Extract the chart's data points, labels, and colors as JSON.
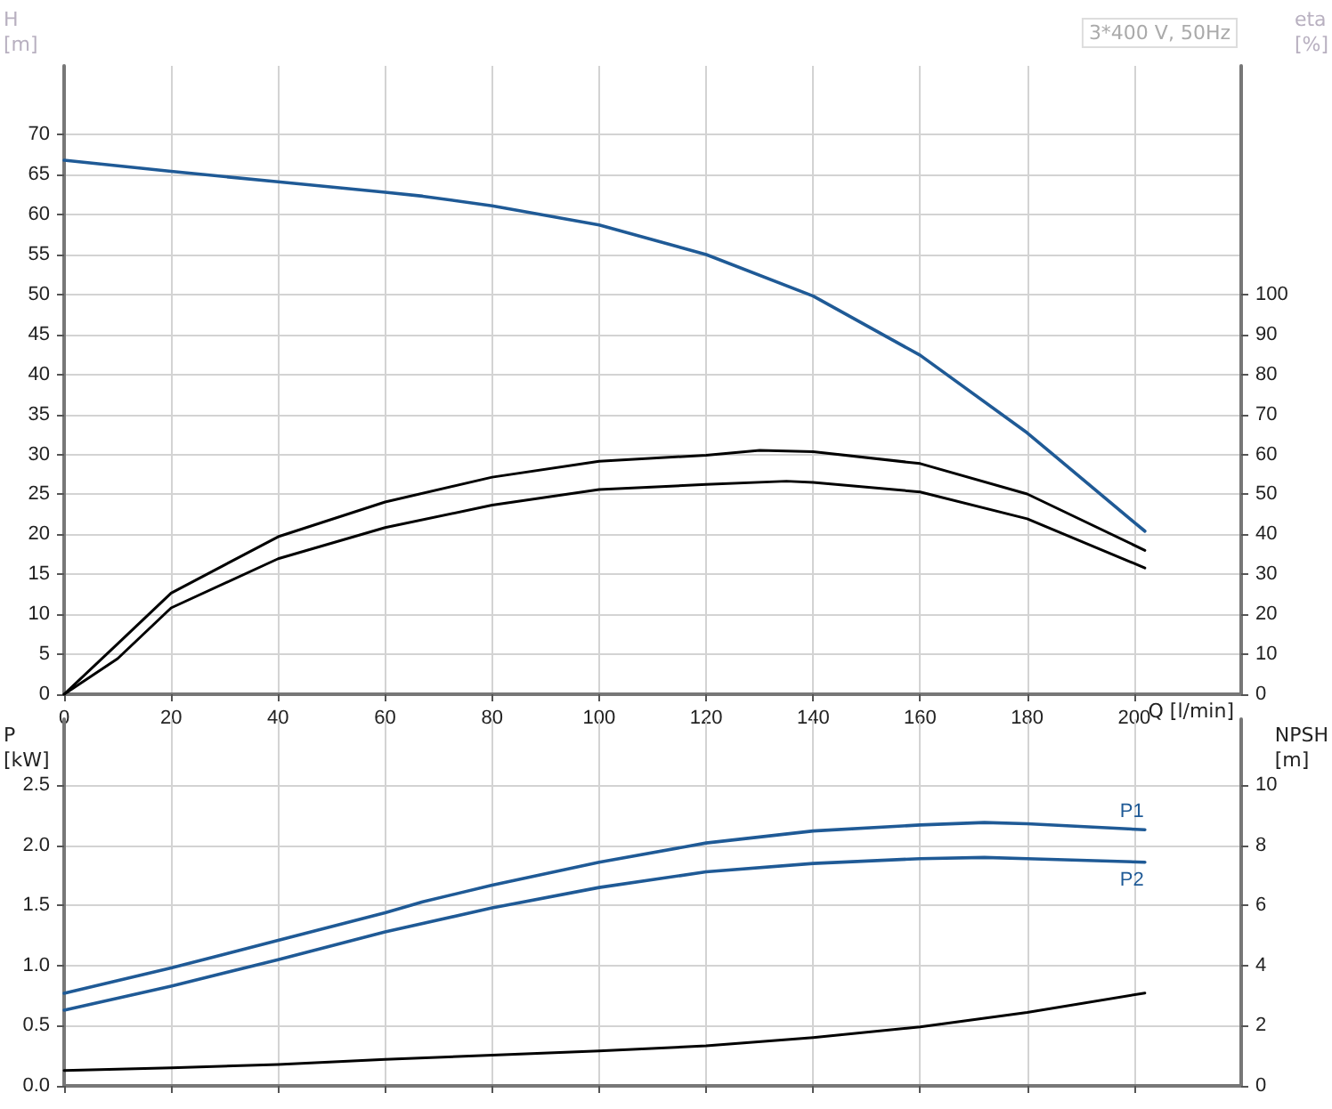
{
  "chart_data": [
    {
      "type": "line",
      "xlabel": "Q [l/min]",
      "ylabel": "H [m]",
      "y2label": "eta [%]",
      "annotations": [
        "3*400 V, 50Hz"
      ],
      "xlim": [
        0,
        220
      ],
      "xticks": [
        0,
        20,
        40,
        60,
        80,
        100,
        120,
        140,
        160,
        180,
        200
      ],
      "ylim": [
        0,
        78.6
      ],
      "yticks": [
        0,
        5,
        10,
        15,
        20,
        25,
        30,
        35,
        40,
        45,
        50,
        55,
        60,
        65,
        70
      ],
      "y2lim": [
        0,
        157.2
      ],
      "y2ticks": [
        0,
        10,
        20,
        30,
        40,
        50,
        60,
        70,
        80,
        90,
        100
      ],
      "grid": true,
      "legend": false,
      "marker": "none",
      "line_style": "solid",
      "series": [
        {
          "color": "#1f5a96",
          "x": [
            0,
            20,
            40,
            60,
            67,
            80,
            100,
            120,
            140,
            160,
            180,
            200,
            202
          ],
          "values": [
            66.8,
            65.4,
            64.1,
            62.8,
            62.3,
            61.1,
            58.7,
            55.0,
            49.8,
            42.4,
            32.7,
            21.5,
            20.4
          ]
        },
        {
          "color": "#000000",
          "axis": "y2",
          "x": [
            0,
            10,
            20,
            40,
            60,
            80,
            100,
            120,
            130,
            140,
            160,
            180,
            202
          ],
          "values": [
            0,
            12.6,
            25.3,
            39.4,
            48.1,
            54.3,
            58.3,
            59.8,
            61.0,
            60.7,
            57.7,
            50.1,
            36.0
          ]
        },
        {
          "color": "#000000",
          "axis": "y2",
          "x": [
            0,
            10,
            20,
            40,
            60,
            80,
            100,
            120,
            135,
            140,
            160,
            180,
            202
          ],
          "values": [
            0,
            8.9,
            21.6,
            33.9,
            41.7,
            47.3,
            51.2,
            52.5,
            53.3,
            53.0,
            50.6,
            43.9,
            31.6
          ]
        }
      ]
    },
    {
      "type": "line",
      "ylabel": "P [kW]",
      "y2label": "NPSH [m]",
      "xlim": [
        0,
        220
      ],
      "xticks": [
        0,
        20,
        40,
        60,
        80,
        100,
        120,
        140,
        160,
        180,
        200
      ],
      "tick_labels": "y",
      "ylim": [
        0,
        3.05
      ],
      "yticks": [
        {
          "value": 0,
          "label": "0.0"
        },
        0.5,
        {
          "value": 1,
          "label": "1.0"
        },
        1.5,
        {
          "value": 2,
          "label": "2.0"
        },
        2.5
      ],
      "y2lim": [
        0,
        12.2
      ],
      "y2ticks": [
        0,
        2,
        4,
        6,
        8,
        10
      ],
      "grid": true,
      "legend": false,
      "marker": "none",
      "line_style": "solid",
      "series": [
        {
          "name": "P1",
          "color": "#1f5a96",
          "x": [
            0,
            20,
            40,
            60,
            67,
            80,
            100,
            120,
            140,
            160,
            172,
            180,
            202
          ],
          "values": [
            0.77,
            0.98,
            1.21,
            1.44,
            1.53,
            1.67,
            1.86,
            2.02,
            2.12,
            2.17,
            2.19,
            2.18,
            2.13
          ]
        },
        {
          "name": "P2",
          "color": "#1f5a96",
          "x": [
            0,
            20,
            40,
            60,
            80,
            100,
            120,
            140,
            160,
            172,
            180,
            202
          ],
          "values": [
            0.63,
            0.83,
            1.05,
            1.28,
            1.48,
            1.65,
            1.78,
            1.85,
            1.89,
            1.9,
            1.89,
            1.86
          ]
        },
        {
          "color": "#000000",
          "axis": "y2",
          "x": [
            0,
            20,
            40,
            60,
            80,
            100,
            120,
            140,
            160,
            180,
            202
          ],
          "values": [
            0.51,
            0.6,
            0.71,
            0.88,
            1.02,
            1.16,
            1.33,
            1.61,
            1.96,
            2.44,
            3.09
          ]
        }
      ]
    }
  ]
}
